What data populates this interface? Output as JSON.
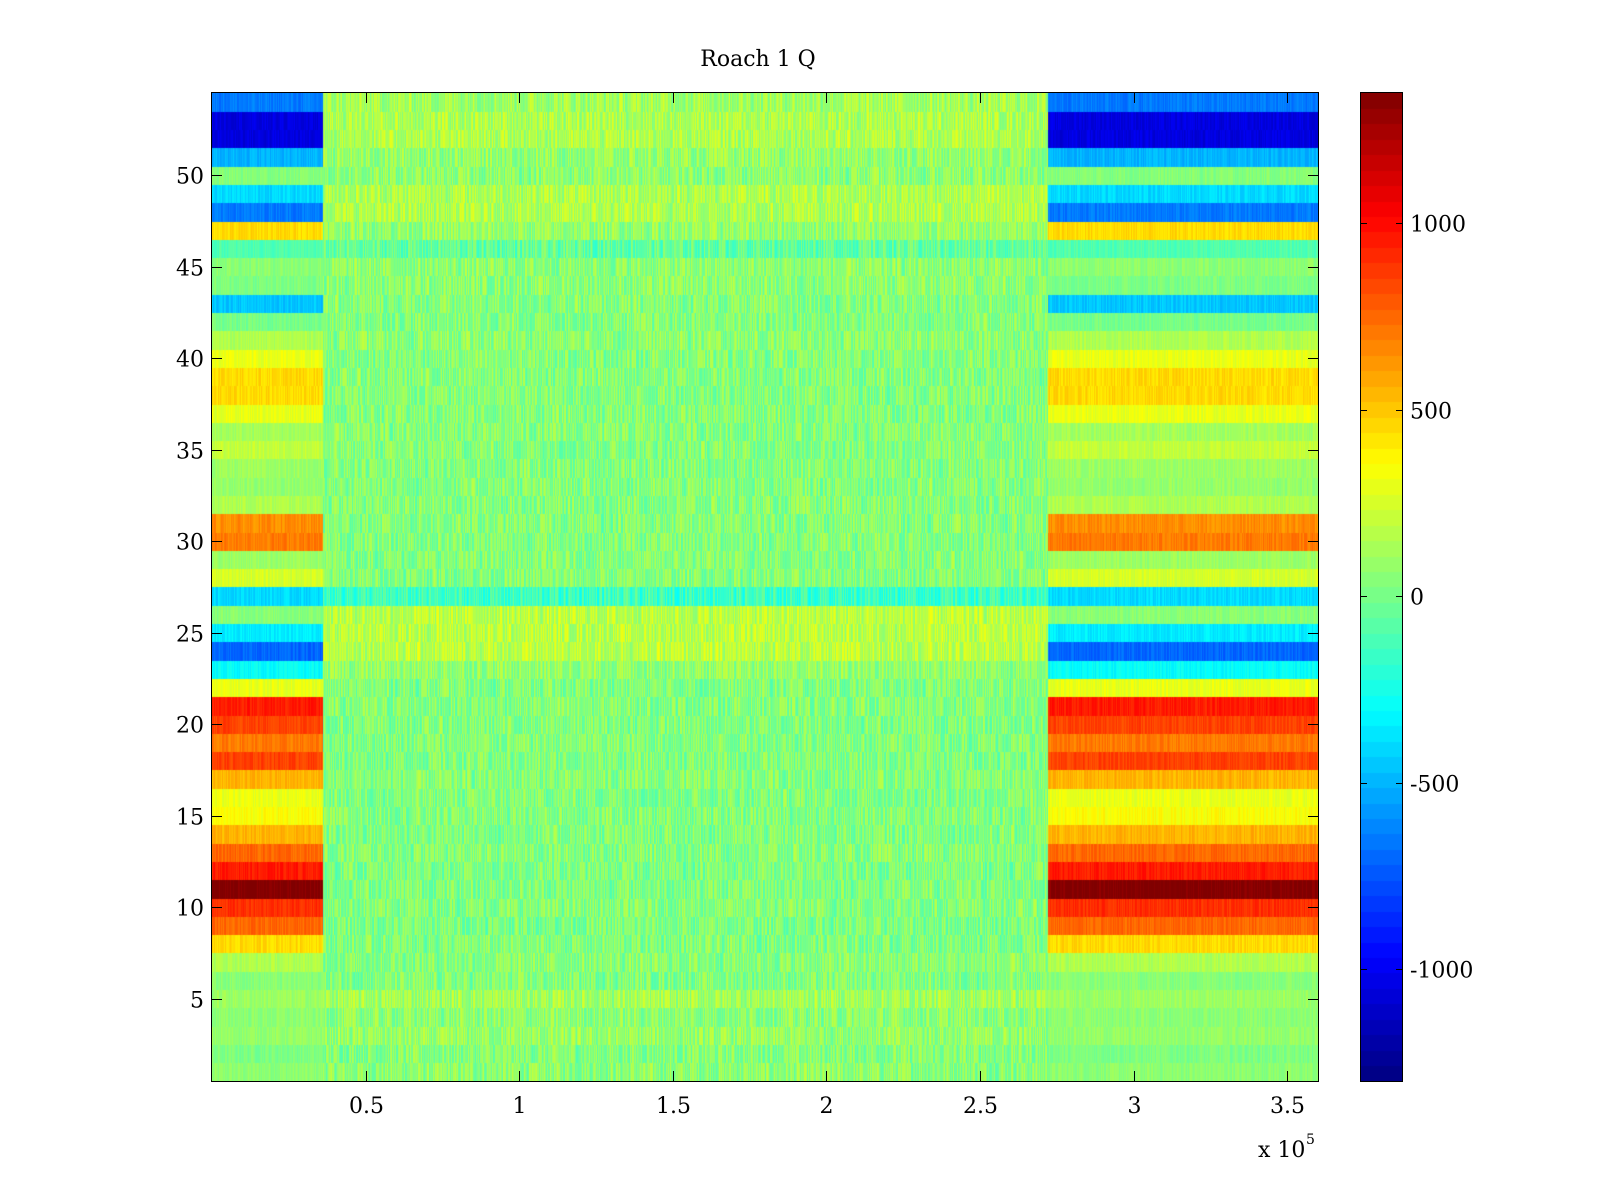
{
  "chart_data": {
    "type": "heatmap",
    "title": "Roach 1 Q",
    "xlabel": "",
    "ylabel": "",
    "x_exponent_label": "x 10",
    "x_exponent_power": "5",
    "xlim": [
      0,
      3.6
    ],
    "ylim": [
      0.5,
      54.5
    ],
    "xticks": [
      0.5,
      1,
      1.5,
      2,
      2.5,
      3,
      3.5
    ],
    "xtick_labels": [
      "0.5",
      "1",
      "1.5",
      "2",
      "2.5",
      "3",
      "3.5"
    ],
    "yticks": [
      5,
      10,
      15,
      20,
      25,
      30,
      35,
      40,
      45,
      50
    ],
    "ytick_labels": [
      "5",
      "10",
      "15",
      "20",
      "25",
      "30",
      "35",
      "40",
      "45",
      "50"
    ],
    "colormap": "jet",
    "clim": [
      -1300,
      1350
    ],
    "colorbar_ticks": [
      1000,
      500,
      0,
      -500,
      -1000
    ],
    "colorbar_tick_labels": [
      "1000",
      "500",
      "0",
      "-500",
      "-1000"
    ],
    "active_segments_x": [
      [
        0,
        0.36
      ],
      [
        2.72,
        3.6
      ]
    ],
    "center_noise_amplitude": 150,
    "row_values_active": [
      60,
      20,
      80,
      60,
      100,
      50,
      150,
      450,
      750,
      900,
      1350,
      950,
      750,
      550,
      350,
      300,
      550,
      850,
      700,
      850,
      950,
      300,
      -300,
      -700,
      -350,
      50,
      -400,
      250,
      100,
      700,
      650,
      150,
      80,
      100,
      200,
      120,
      300,
      450,
      450,
      300,
      150,
      0,
      -450,
      20,
      60,
      -100,
      450,
      -650,
      -400,
      40,
      -500,
      -1050,
      -1050,
      -650
    ],
    "row_values_center": [
      60,
      40,
      80,
      60,
      120,
      30,
      50,
      30,
      20,
      40,
      30,
      20,
      40,
      30,
      40,
      30,
      40,
      30,
      40,
      30,
      40,
      30,
      80,
      180,
      180,
      180,
      -150,
      40,
      40,
      40,
      40,
      40,
      40,
      40,
      40,
      40,
      40,
      40,
      40,
      40,
      60,
      40,
      40,
      60,
      60,
      -50,
      80,
      150,
      150,
      60,
      80,
      150,
      150,
      120
    ]
  }
}
